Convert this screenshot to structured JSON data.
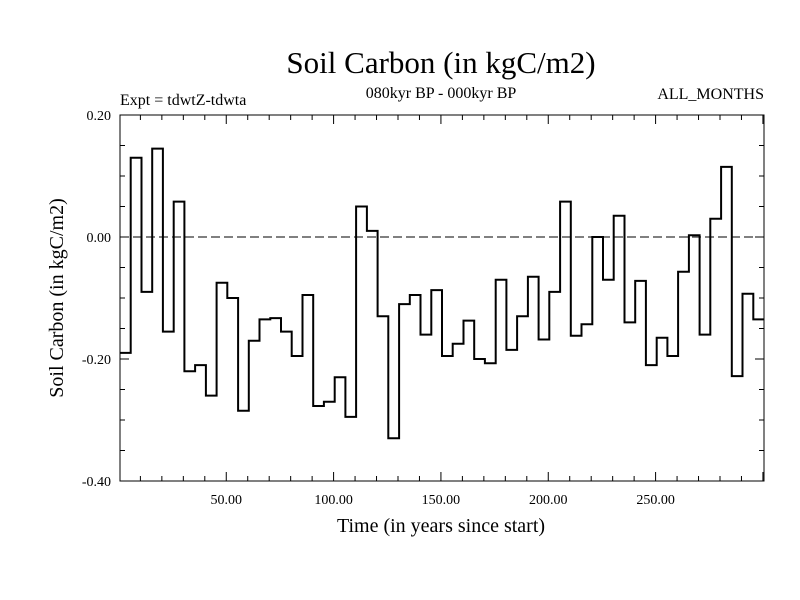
{
  "chart_data": {
    "type": "line",
    "step": true,
    "title": "Soil Carbon (in kgC/m2)",
    "subtitle_left": "Expt = tdwtZ-tdwta",
    "subtitle_center": "080kyr BP - 000kyr BP",
    "subtitle_right": "ALL_MONTHS",
    "xlabel": "Time (in years since start)",
    "ylabel": "Soil Carbon (in kgC/m2)",
    "xlim": [
      0.5,
      300.5
    ],
    "ylim": [
      -0.4,
      0.2
    ],
    "xticks": [
      50,
      100,
      150,
      200,
      250
    ],
    "xtick_labels": [
      "50.00",
      "100.00",
      "150.00",
      "200.00",
      "250.00"
    ],
    "yticks": [
      -0.4,
      -0.2,
      0.0,
      0.2
    ],
    "ytick_labels": [
      "-0.40",
      "-0.20",
      "0.00",
      "0.20"
    ],
    "y_minor_step": 0.05,
    "zero_line": {
      "y": 0.0,
      "style": "dashed"
    },
    "series": [
      {
        "name": "Soil Carbon",
        "x_start": 0.5,
        "x_step": 5,
        "values": [
          -0.19,
          0.13,
          -0.09,
          0.145,
          -0.155,
          0.058,
          -0.22,
          -0.21,
          -0.26,
          -0.075,
          -0.1,
          -0.285,
          -0.17,
          -0.135,
          -0.133,
          -0.155,
          -0.195,
          -0.095,
          -0.277,
          -0.27,
          -0.23,
          -0.295,
          0.05,
          0.01,
          -0.13,
          -0.33,
          -0.11,
          -0.095,
          -0.16,
          -0.087,
          -0.195,
          -0.175,
          -0.137,
          -0.2,
          -0.207,
          -0.07,
          -0.185,
          -0.13,
          -0.065,
          -0.168,
          -0.09,
          0.058,
          -0.162,
          -0.143,
          0.0,
          -0.07,
          0.035,
          -0.14,
          -0.072,
          -0.21,
          -0.165,
          -0.195,
          -0.057,
          0.003,
          -0.16,
          0.03,
          0.115,
          -0.228,
          -0.093,
          -0.135
        ]
      }
    ]
  }
}
